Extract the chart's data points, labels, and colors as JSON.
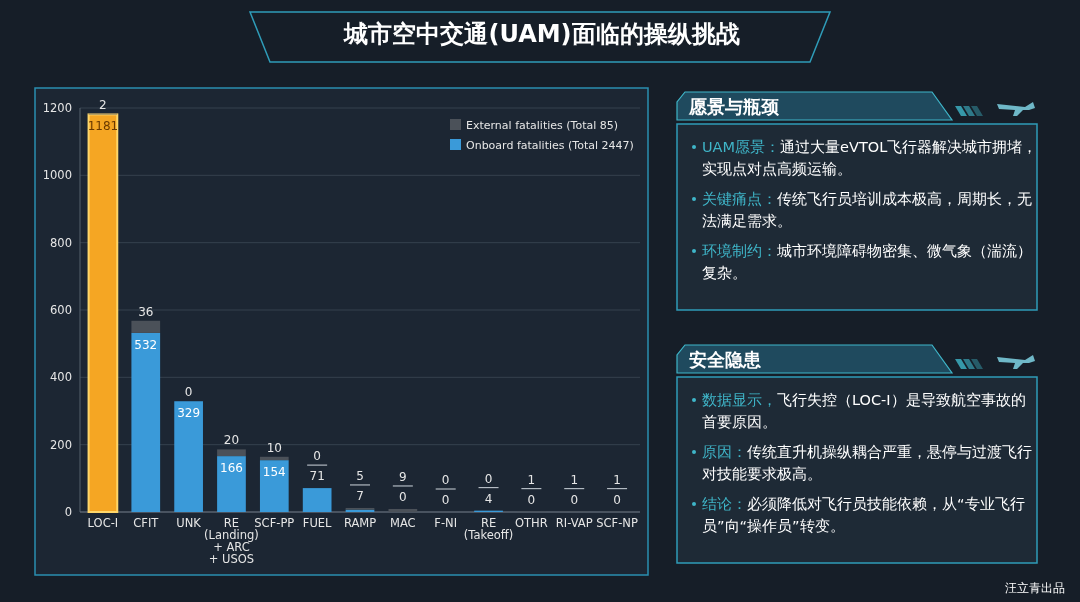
{
  "chart_data": [
    {
      "type": "bar",
      "title": "城市空中交通(UAM)面临的操纵挑战",
      "stacked": true,
      "categories": [
        "LOC-I",
        "CFIT",
        "UNK",
        "RE\n(Landing)\n+ ARC\n+ USOS",
        "SCF-PP",
        "FUEL",
        "RAMP",
        "MAC",
        "F-NI",
        "RE\n(Takeoff)",
        "OTHR",
        "RI-VAP",
        "SCF-NP"
      ],
      "series": [
        {
          "name": "Onboard fatalities (Total 2447)",
          "color": "#3a9ad9",
          "colors": [
            "#f5a623",
            "#3a9ad9",
            "#3a9ad9",
            "#3a9ad9",
            "#3a9ad9",
            "#3a9ad9",
            "#3a9ad9",
            "#3a9ad9",
            "#3a9ad9",
            "#3a9ad9",
            "#3a9ad9",
            "#3a9ad9",
            "#3a9ad9"
          ],
          "values": [
            1181,
            532,
            329,
            166,
            154,
            71,
            7,
            0,
            0,
            4,
            0,
            0,
            0
          ]
        },
        {
          "name": "External fatalities (Total 85)",
          "color": "#4b5159",
          "values": [
            2,
            36,
            0,
            20,
            10,
            0,
            5,
            9,
            0,
            0,
            1,
            1,
            1
          ]
        }
      ],
      "ylim": [
        0,
        1200
      ],
      "yticks": [
        0,
        200,
        400,
        600,
        800,
        1000,
        1200
      ],
      "grid": "y",
      "legend": "top right",
      "data_labels": true,
      "annotations": [
        "汪立青出品"
      ]
    },
    {
      "type": "other",
      "title": "愿景与瓶颈",
      "annotations": [
        "UAM愿景：通过大量eVTOL飞行器解决城市拥堵，实现点对点高频运输。",
        "关键痛点：传统飞行员培训成本极高，周期长，无法满足需求。",
        "环境制约：城市环境障碍物密集、微气象（湍流）复杂。"
      ]
    },
    {
      "type": "other",
      "title": "安全隐患",
      "annotations": [
        "数据显示，飞行失控（LOC-I）是导致航空事故的首要原因。",
        "原因：传统直升机操纵耦合严重，悬停与过渡飞行对技能要求极高。",
        "结论：必须降低对飞行员技能依赖，从“专业飞行员”向“操作员”转变。"
      ]
    }
  ]
}
